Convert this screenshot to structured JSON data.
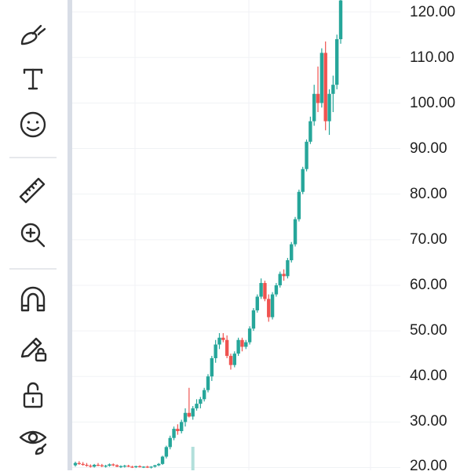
{
  "toolbar": {
    "tools": [
      {
        "name": "brush-tool-button",
        "icon": "brush-icon"
      },
      {
        "name": "text-tool-button",
        "icon": "text-icon"
      },
      {
        "name": "emoji-tool-button",
        "icon": "smiley-icon"
      },
      {
        "name": "ruler-tool-button",
        "icon": "ruler-icon"
      },
      {
        "name": "zoom-in-tool-button",
        "icon": "zoom-in-icon"
      },
      {
        "name": "magnet-tool-button",
        "icon": "magnet-icon"
      },
      {
        "name": "lock-drawings-button",
        "icon": "pencil-lock-icon"
      },
      {
        "name": "lock-all-button",
        "icon": "unlock-icon"
      },
      {
        "name": "hide-drawings-button",
        "icon": "eye-brush-icon"
      }
    ]
  },
  "colors": {
    "up": "#26a69a",
    "down": "#ef5350",
    "volume": "#b2dfdb",
    "grid": "#f0f2f5",
    "icon": "#2b2b2b"
  },
  "price_axis": {
    "labels": [
      "120.00",
      "110.00",
      "100.00",
      "90.00",
      "80.00",
      "70.00",
      "60.00",
      "50.00",
      "40.00",
      "30.00",
      "20.00"
    ]
  },
  "chart_data": {
    "type": "candlestick",
    "ylim": [
      19.4,
      122.6
    ],
    "grid": true,
    "candles": [
      {
        "o": 20.5,
        "h": 21.3,
        "l": 20.2,
        "c": 21.0
      },
      {
        "o": 21.0,
        "h": 21.4,
        "l": 20.6,
        "c": 20.8
      },
      {
        "o": 20.8,
        "h": 21.2,
        "l": 20.4,
        "c": 20.6
      },
      {
        "o": 20.6,
        "h": 21.0,
        "l": 20.2,
        "c": 20.4
      },
      {
        "o": 20.4,
        "h": 20.7,
        "l": 20.0,
        "c": 20.2
      },
      {
        "o": 20.2,
        "h": 20.8,
        "l": 20.0,
        "c": 20.6
      },
      {
        "o": 20.6,
        "h": 21.0,
        "l": 20.3,
        "c": 20.5
      },
      {
        "o": 20.5,
        "h": 20.8,
        "l": 20.1,
        "c": 20.3
      },
      {
        "o": 20.3,
        "h": 20.6,
        "l": 20.0,
        "c": 20.4
      },
      {
        "o": 20.4,
        "h": 20.9,
        "l": 20.2,
        "c": 20.7
      },
      {
        "o": 20.7,
        "h": 20.9,
        "l": 20.3,
        "c": 20.5
      },
      {
        "o": 20.5,
        "h": 20.7,
        "l": 20.1,
        "c": 20.2
      },
      {
        "o": 20.2,
        "h": 20.5,
        "l": 19.9,
        "c": 20.3
      },
      {
        "o": 20.3,
        "h": 20.6,
        "l": 20.0,
        "c": 20.4
      },
      {
        "o": 20.4,
        "h": 20.6,
        "l": 20.1,
        "c": 20.2
      },
      {
        "o": 20.2,
        "h": 20.4,
        "l": 19.9,
        "c": 20.1
      },
      {
        "o": 20.1,
        "h": 20.4,
        "l": 19.9,
        "c": 20.3
      },
      {
        "o": 20.3,
        "h": 20.5,
        "l": 20.0,
        "c": 20.1
      },
      {
        "o": 20.1,
        "h": 20.3,
        "l": 19.9,
        "c": 20.2
      },
      {
        "o": 20.2,
        "h": 20.4,
        "l": 19.9,
        "c": 20.0
      },
      {
        "o": 20.0,
        "h": 20.3,
        "l": 19.8,
        "c": 20.2
      },
      {
        "o": 20.2,
        "h": 20.6,
        "l": 20.0,
        "c": 20.5
      },
      {
        "o": 20.5,
        "h": 21.0,
        "l": 20.3,
        "c": 20.8
      },
      {
        "o": 20.8,
        "h": 22.6,
        "l": 20.6,
        "c": 22.4
      },
      {
        "o": 22.4,
        "h": 24.8,
        "l": 22.0,
        "c": 24.5
      },
      {
        "o": 24.5,
        "h": 27.0,
        "l": 24.0,
        "c": 26.5
      },
      {
        "o": 26.5,
        "h": 29.0,
        "l": 26.0,
        "c": 28.5
      },
      {
        "o": 28.5,
        "h": 29.5,
        "l": 27.2,
        "c": 28.0
      },
      {
        "o": 28.0,
        "h": 30.5,
        "l": 27.5,
        "c": 30.0
      },
      {
        "o": 30.0,
        "h": 33.0,
        "l": 29.0,
        "c": 32.0
      },
      {
        "o": 32.0,
        "h": 37.5,
        "l": 31.0,
        "c": 31.2
      },
      {
        "o": 31.2,
        "h": 33.5,
        "l": 30.5,
        "c": 33.0
      },
      {
        "o": 33.0,
        "h": 35.0,
        "l": 32.5,
        "c": 34.0
      },
      {
        "o": 34.0,
        "h": 35.5,
        "l": 33.0,
        "c": 35.0
      },
      {
        "o": 35.0,
        "h": 37.5,
        "l": 34.5,
        "c": 37.0
      },
      {
        "o": 37.0,
        "h": 40.5,
        "l": 36.5,
        "c": 40.0
      },
      {
        "o": 40.0,
        "h": 44.5,
        "l": 39.0,
        "c": 44.0
      },
      {
        "o": 44.0,
        "h": 48.0,
        "l": 43.0,
        "c": 47.0
      },
      {
        "o": 47.0,
        "h": 49.5,
        "l": 46.0,
        "c": 48.5
      },
      {
        "o": 48.5,
        "h": 49.5,
        "l": 47.5,
        "c": 48.0
      },
      {
        "o": 48.0,
        "h": 49.0,
        "l": 44.0,
        "c": 44.5
      },
      {
        "o": 44.5,
        "h": 45.0,
        "l": 41.5,
        "c": 42.5
      },
      {
        "o": 42.5,
        "h": 45.5,
        "l": 42.0,
        "c": 45.0
      },
      {
        "o": 45.0,
        "h": 48.5,
        "l": 44.5,
        "c": 48.0
      },
      {
        "o": 48.0,
        "h": 48.5,
        "l": 45.5,
        "c": 46.5
      },
      {
        "o": 46.5,
        "h": 48.0,
        "l": 46.0,
        "c": 47.5
      },
      {
        "o": 47.5,
        "h": 51.0,
        "l": 47.0,
        "c": 50.5
      },
      {
        "o": 50.5,
        "h": 55.0,
        "l": 50.0,
        "c": 54.5
      },
      {
        "o": 54.5,
        "h": 58.0,
        "l": 54.0,
        "c": 57.5
      },
      {
        "o": 57.5,
        "h": 61.5,
        "l": 57.0,
        "c": 60.5
      },
      {
        "o": 60.5,
        "h": 61.0,
        "l": 56.5,
        "c": 57.0
      },
      {
        "o": 57.0,
        "h": 58.0,
        "l": 52.0,
        "c": 53.0
      },
      {
        "o": 53.0,
        "h": 58.5,
        "l": 52.5,
        "c": 58.0
      },
      {
        "o": 58.0,
        "h": 60.5,
        "l": 57.5,
        "c": 60.0
      },
      {
        "o": 60.0,
        "h": 63.0,
        "l": 59.5,
        "c": 62.5
      },
      {
        "o": 62.5,
        "h": 63.5,
        "l": 61.0,
        "c": 62.0
      },
      {
        "o": 62.0,
        "h": 66.0,
        "l": 61.5,
        "c": 65.5
      },
      {
        "o": 65.5,
        "h": 69.5,
        "l": 65.0,
        "c": 69.0
      },
      {
        "o": 69.0,
        "h": 75.0,
        "l": 68.5,
        "c": 74.5
      },
      {
        "o": 74.5,
        "h": 81.0,
        "l": 74.0,
        "c": 80.5
      },
      {
        "o": 80.5,
        "h": 86.0,
        "l": 80.0,
        "c": 85.5
      },
      {
        "o": 85.5,
        "h": 92.0,
        "l": 85.0,
        "c": 91.5
      },
      {
        "o": 91.5,
        "h": 97.0,
        "l": 91.0,
        "c": 96.0
      },
      {
        "o": 96.0,
        "h": 104.0,
        "l": 95.0,
        "c": 102.0
      },
      {
        "o": 102.0,
        "h": 108.0,
        "l": 98.0,
        "c": 100.0
      },
      {
        "o": 100.0,
        "h": 112.0,
        "l": 99.0,
        "c": 111.0
      },
      {
        "o": 111.0,
        "h": 113.5,
        "l": 94.0,
        "c": 96.0
      },
      {
        "o": 96.0,
        "h": 103.0,
        "l": 93.0,
        "c": 102.0
      },
      {
        "o": 102.0,
        "h": 106.0,
        "l": 98.0,
        "c": 104.0
      },
      {
        "o": 104.0,
        "h": 115.0,
        "l": 103.0,
        "c": 114.0
      },
      {
        "o": 114.0,
        "h": 123.0,
        "l": 113.0,
        "c": 122.5
      }
    ],
    "volume_spikes": [
      {
        "index": 31,
        "height_rel": 1.0
      }
    ]
  }
}
